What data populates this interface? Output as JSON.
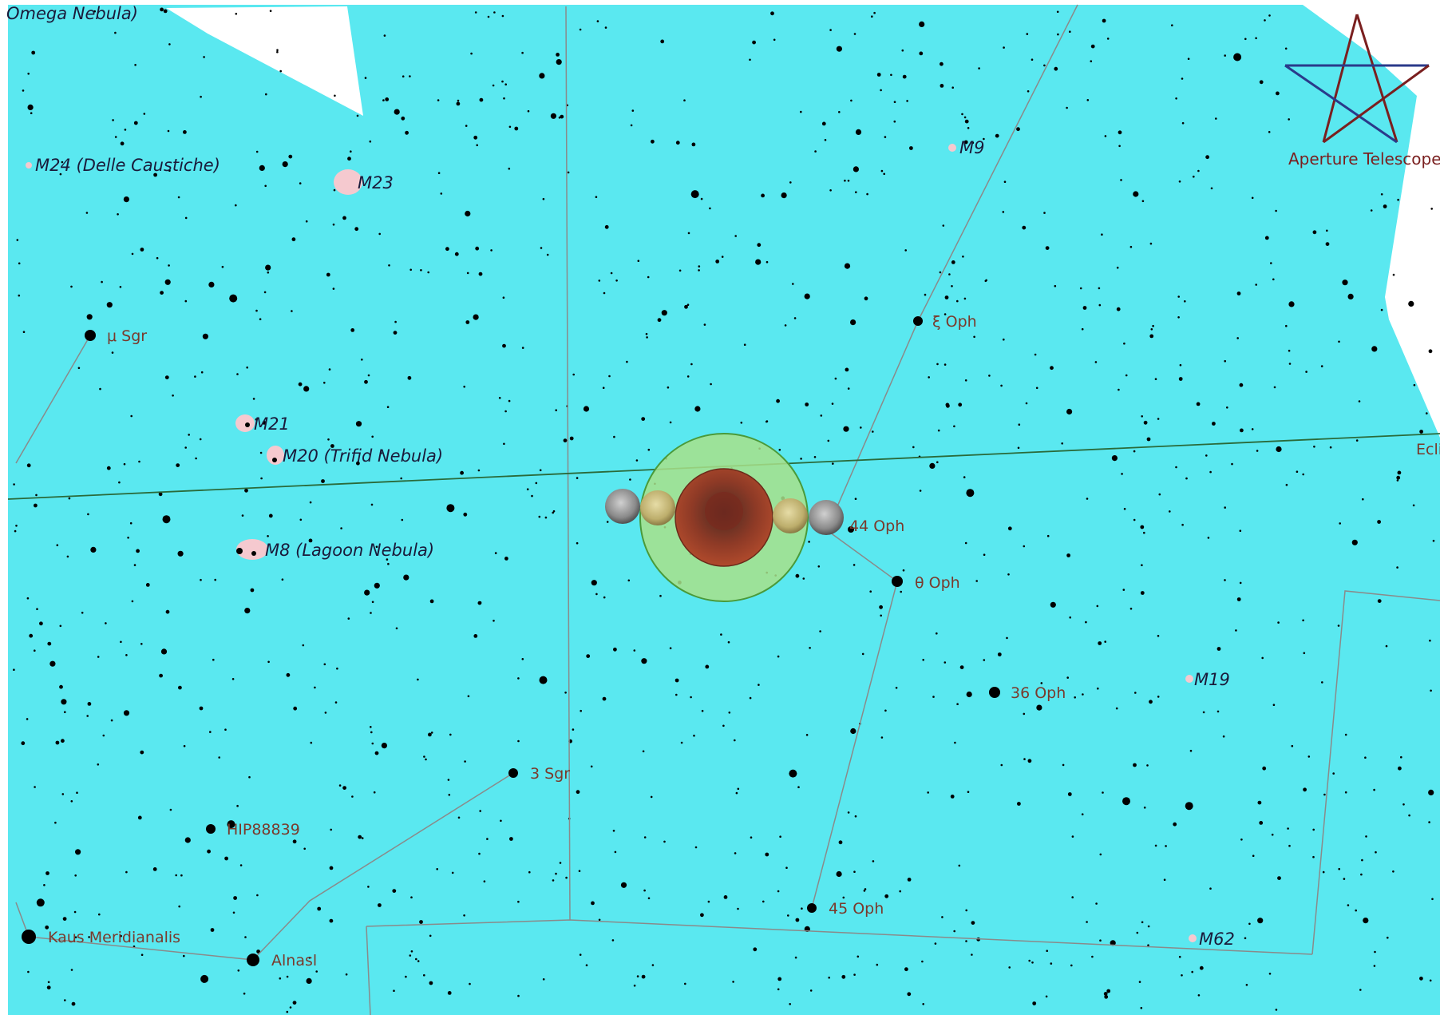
{
  "map": {
    "background_color": "#5ae8f0",
    "star_color": "#000000",
    "line_color": "#8a8a8a",
    "ecliptic_color": "#2a6a3a",
    "label_color": "#7a3a2c",
    "dso_label_color": "#1a1a3a",
    "dso_fill": "#f5c9cf"
  },
  "logo": {
    "text": "Aperture Telescopes",
    "icon": "star-pentagram-icon"
  },
  "ecliptic_label": "Ecli",
  "deep_sky": {
    "omega": "Omega Nebula)",
    "m24": "M24 (Delle Caustiche)",
    "m23": "M23",
    "m21": "M21",
    "m20": "M20 (Trifid Nebula)",
    "m8": "M8 (Lagoon Nebula)",
    "m9": "M9",
    "m19": "M19",
    "m62": "M62"
  },
  "stars": {
    "mu_sgr": "μ Sgr",
    "xi_oph": "ξ Oph",
    "oph44": "44 Oph",
    "theta_oph": "θ Oph",
    "oph36": "36 Oph",
    "sgr3": "3 Sgr",
    "hip": "HIP88839",
    "oph45": "45 Oph",
    "kaus": "Kaus Meridianalis",
    "alnasl": "Alnasl"
  },
  "eclipse": {
    "penumbra_color": "#a8e08a",
    "umbra_color": "#a8402a",
    "moon_colors": [
      "#8a8a8a",
      "#c8b878",
      "#c8b878",
      "#8a8a8a"
    ]
  }
}
